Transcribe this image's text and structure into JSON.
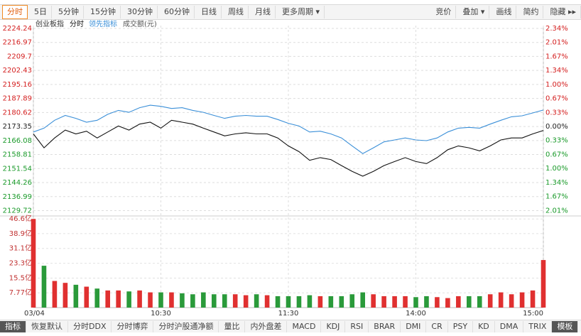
{
  "toolbar": {
    "left": [
      "分时",
      "5日",
      "5分钟",
      "15分钟",
      "30分钟",
      "60分钟",
      "日线",
      "周线",
      "月线",
      "更多周期 ▾"
    ],
    "right": [
      "竞价",
      "叠加 ▾",
      "画线",
      "简约",
      "隐藏 ▸▸"
    ]
  },
  "legend": [
    "创业板指",
    "分时",
    "领先指标",
    "成交额(元)"
  ],
  "chart_data": {
    "type": "line",
    "x": [
      0,
      5,
      10,
      15,
      20,
      25,
      30,
      35,
      40,
      45,
      50,
      55,
      60,
      65,
      70,
      75,
      80,
      85,
      90,
      95,
      100,
      105,
      110,
      115,
      120,
      125,
      130,
      135,
      140,
      145,
      150,
      155,
      160,
      165,
      170,
      175,
      180,
      185,
      190,
      195,
      200,
      205,
      210,
      215,
      220,
      225,
      230,
      235,
      240
    ],
    "xlim": [
      0,
      240
    ],
    "xticks": [
      {
        "value": 0,
        "label": "03/04"
      },
      {
        "value": 60,
        "label": "10:30"
      },
      {
        "value": 120,
        "label": "11:30"
      },
      {
        "value": 180,
        "label": "14:00"
      },
      {
        "value": 240,
        "label": "15:00"
      }
    ],
    "ylim": [
      2127.7,
      2225.7
    ],
    "yticks": [
      2224.24,
      2216.97,
      2209.7,
      2202.43,
      2195.16,
      2187.89,
      2180.62,
      2173.35,
      2166.08,
      2158.81,
      2151.54,
      2144.26,
      2136.99,
      2129.72
    ],
    "y2lim": [
      -2.1,
      2.41
    ],
    "y2ticks": [
      {
        "value": 2.34,
        "label": "2.34%"
      },
      {
        "value": 2.01,
        "label": "2.01%"
      },
      {
        "value": 1.67,
        "label": "1.67%"
      },
      {
        "value": 1.34,
        "label": "1.34%"
      },
      {
        "value": 1.0,
        "label": "1.00%"
      },
      {
        "value": 0.67,
        "label": "0.67%"
      },
      {
        "value": 0.33,
        "label": "0.33%"
      },
      {
        "value": 0,
        "label": "0.00%"
      },
      {
        "value": -0.33,
        "label": "0.33%"
      },
      {
        "value": -0.67,
        "label": "0.67%"
      },
      {
        "value": -1.0,
        "label": "1.00%"
      },
      {
        "value": -1.34,
        "label": "1.34%"
      },
      {
        "value": -1.67,
        "label": "1.67%"
      },
      {
        "value": -2.01,
        "label": "2.01%"
      }
    ],
    "grid": true,
    "series": [
      {
        "name": "分时",
        "color": "#111111",
        "values": [
          2169.5,
          2162.3,
          2167.4,
          2171.5,
          2169.5,
          2170.9,
          2167.4,
          2170.5,
          2173.6,
          2171.5,
          2174.6,
          2175.6,
          2172.5,
          2176.6,
          2175.6,
          2174.6,
          2172.5,
          2170.5,
          2168.5,
          2169.5,
          2170.1,
          2169.5,
          2169.5,
          2167.4,
          2163.3,
          2160.3,
          2155.8,
          2157.2,
          2156.2,
          2153.1,
          2150.1,
          2147.6,
          2150.1,
          2153.1,
          2155.2,
          2157.2,
          2155.2,
          2154.1,
          2157.2,
          2161.3,
          2163.3,
          2162.3,
          2160.7,
          2163.3,
          2166.4,
          2167.4,
          2167.4,
          2169.5,
          2171.3
        ]
      },
      {
        "name": "领先指标",
        "color": "#3a8fd8",
        "values": [
          2170.5,
          2172.5,
          2176.6,
          2179.1,
          2177.6,
          2175.6,
          2176.6,
          2179.7,
          2181.7,
          2180.7,
          2183.1,
          2184.4,
          2183.8,
          2182.7,
          2183.1,
          2181.7,
          2180.7,
          2179.1,
          2177.6,
          2178.7,
          2179.1,
          2178.7,
          2178.7,
          2177.0,
          2175.0,
          2173.6,
          2170.5,
          2170.9,
          2169.5,
          2167.4,
          2163.3,
          2159.3,
          2162.3,
          2165.4,
          2166.4,
          2167.4,
          2166.4,
          2166.0,
          2167.4,
          2170.5,
          2172.5,
          2172.9,
          2172.5,
          2174.6,
          2176.6,
          2178.4,
          2178.9,
          2180.4,
          2181.9
        ]
      }
    ],
    "volume": {
      "name": "成交额(元)",
      "up_color": "#e03030",
      "down_color": "#2a9a3a",
      "values": [
        46.6,
        22,
        14,
        13,
        12,
        11,
        10,
        9,
        9,
        8.5,
        9,
        8,
        8,
        8,
        7.5,
        7,
        8,
        7,
        7,
        7,
        6.5,
        7,
        6.5,
        6,
        6,
        6,
        6.5,
        6,
        6,
        6,
        7,
        8,
        7,
        6,
        6,
        6,
        5.5,
        6,
        5.5,
        5,
        6,
        6,
        6,
        7,
        8,
        7,
        8,
        9,
        25
      ],
      "ylim": [
        0,
        47.8
      ],
      "yticks": [
        {
          "value": 46.6,
          "label": "46.6亿"
        },
        {
          "value": 38.9,
          "label": "38.9亿"
        },
        {
          "value": 31.1,
          "label": "31.1亿"
        },
        {
          "value": 23.3,
          "label": "23.3亿"
        },
        {
          "value": 15.5,
          "label": "15.5亿"
        },
        {
          "value": 7.77,
          "label": "7.77亿"
        }
      ]
    }
  },
  "bottombar": [
    "指标",
    "恢复默认",
    "分时DDX",
    "分时博弈",
    "分时沪股通净额",
    "量比",
    "内外盘差",
    "MACD",
    "KDJ",
    "RSI",
    "BRAR",
    "DMI",
    "CR",
    "PSY",
    "KD",
    "DMA",
    "TRIX",
    "模板"
  ]
}
